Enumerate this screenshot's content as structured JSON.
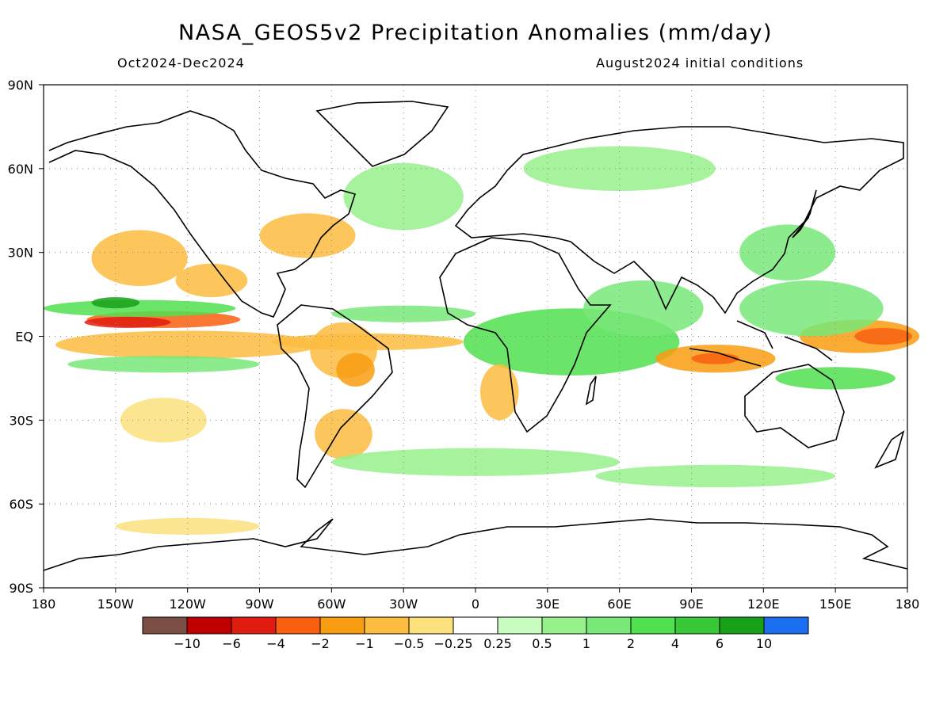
{
  "title": "NASA_GEOS5v2 Precipitation Anomalies (mm/day)",
  "period": "Oct2024-Dec2024",
  "initial_conditions": "August2024 initial conditions",
  "map": {
    "lon_range": [
      -180,
      180
    ],
    "lat_range": [
      -90,
      90
    ],
    "grid": true,
    "lat_labels": [
      {
        "lat": 90,
        "text": "90N"
      },
      {
        "lat": 60,
        "text": "60N"
      },
      {
        "lat": 30,
        "text": "30N"
      },
      {
        "lat": 0,
        "text": "EQ"
      },
      {
        "lat": -30,
        "text": "30S"
      },
      {
        "lat": -60,
        "text": "60S"
      },
      {
        "lat": -90,
        "text": "90S"
      }
    ],
    "lon_labels": [
      {
        "lon": -180,
        "text": "180"
      },
      {
        "lon": -150,
        "text": "150W"
      },
      {
        "lon": -120,
        "text": "120W"
      },
      {
        "lon": -90,
        "text": "90W"
      },
      {
        "lon": -60,
        "text": "60W"
      },
      {
        "lon": -30,
        "text": "30W"
      },
      {
        "lon": 0,
        "text": "0"
      },
      {
        "lon": 30,
        "text": "30E"
      },
      {
        "lon": 60,
        "text": "60E"
      },
      {
        "lon": 90,
        "text": "90E"
      },
      {
        "lon": 120,
        "text": "120E"
      },
      {
        "lon": 150,
        "text": "150E"
      },
      {
        "lon": 180,
        "text": "180"
      }
    ]
  },
  "colorbar": {
    "colors": [
      "#7b4f45",
      "#c00000",
      "#e01c10",
      "#f86010",
      "#f89c10",
      "#fcbc40",
      "#fce07c",
      "#ffffff",
      "#c8fcc0",
      "#96f08c",
      "#78e878",
      "#50e050",
      "#38c838",
      "#18a018",
      "#1c6ef0"
    ],
    "labels": [
      "-10",
      "-6",
      "-4",
      "-2",
      "-1",
      "-0.5",
      "-0.25",
      "0.25",
      "0.5",
      "1",
      "2",
      "4",
      "6",
      "10"
    ]
  },
  "anomaly_regions": [
    {
      "lon": -130,
      "lat": 6,
      "rx": 32,
      "ry": 3,
      "level": -4
    },
    {
      "lon": -145,
      "lat": 5,
      "rx": 18,
      "ry": 2,
      "level": -6
    },
    {
      "lon": -120,
      "lat": -3,
      "rx": 55,
      "ry": 5,
      "level": -1
    },
    {
      "lon": -140,
      "lat": 10,
      "rx": 40,
      "ry": 3,
      "level": 2
    },
    {
      "lon": -150,
      "lat": 12,
      "rx": 10,
      "ry": 2,
      "level": 6
    },
    {
      "lon": -130,
      "lat": -10,
      "rx": 40,
      "ry": 3,
      "level": 1
    },
    {
      "lon": -55,
      "lat": -5,
      "rx": 14,
      "ry": 10,
      "level": -1
    },
    {
      "lon": -50,
      "lat": -12,
      "rx": 8,
      "ry": 6,
      "level": -2
    },
    {
      "lon": -45,
      "lat": -2,
      "rx": 40,
      "ry": 3,
      "level": -1
    },
    {
      "lon": -55,
      "lat": -35,
      "rx": 12,
      "ry": 9,
      "level": -1
    },
    {
      "lon": -140,
      "lat": 28,
      "rx": 20,
      "ry": 10,
      "level": -1
    },
    {
      "lon": -70,
      "lat": 36,
      "rx": 20,
      "ry": 8,
      "level": -1
    },
    {
      "lon": -110,
      "lat": 20,
      "rx": 15,
      "ry": 6,
      "level": -1
    },
    {
      "lon": -130,
      "lat": -30,
      "rx": 18,
      "ry": 8,
      "level": -0.5
    },
    {
      "lon": -30,
      "lat": 8,
      "rx": 30,
      "ry": 3,
      "level": 1
    },
    {
      "lon": 40,
      "lat": -2,
      "rx": 45,
      "ry": 12,
      "level": 2
    },
    {
      "lon": 70,
      "lat": 10,
      "rx": 25,
      "ry": 10,
      "level": 1
    },
    {
      "lon": 100,
      "lat": -8,
      "rx": 25,
      "ry": 5,
      "level": -2
    },
    {
      "lon": 100,
      "lat": -8,
      "rx": 10,
      "ry": 2,
      "level": -4
    },
    {
      "lon": 160,
      "lat": 0,
      "rx": 25,
      "ry": 6,
      "level": -2
    },
    {
      "lon": 170,
      "lat": 0,
      "rx": 12,
      "ry": 3,
      "level": -4
    },
    {
      "lon": 140,
      "lat": 10,
      "rx": 30,
      "ry": 10,
      "level": 1
    },
    {
      "lon": 150,
      "lat": -15,
      "rx": 25,
      "ry": 4,
      "level": 2
    },
    {
      "lon": 130,
      "lat": 30,
      "rx": 20,
      "ry": 10,
      "level": 1
    },
    {
      "lon": 10,
      "lat": -20,
      "rx": 8,
      "ry": 10,
      "level": -1
    },
    {
      "lon": 60,
      "lat": 60,
      "rx": 40,
      "ry": 8,
      "level": 0.5
    },
    {
      "lon": -30,
      "lat": 50,
      "rx": 25,
      "ry": 12,
      "level": 0.5
    },
    {
      "lon": 0,
      "lat": -45,
      "rx": 60,
      "ry": 5,
      "level": 0.5
    },
    {
      "lon": 100,
      "lat": -50,
      "rx": 50,
      "ry": 4,
      "level": 0.5
    },
    {
      "lon": -120,
      "lat": -68,
      "rx": 30,
      "ry": 3,
      "level": -0.5
    }
  ]
}
